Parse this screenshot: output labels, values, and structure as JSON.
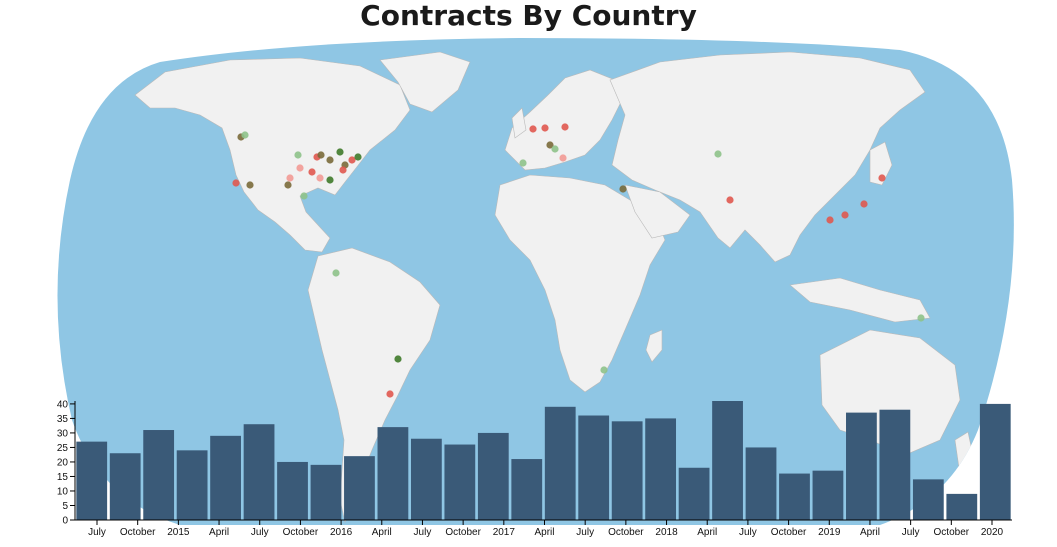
{
  "title": "Contracts By Country",
  "colors": {
    "ocean": "#8fc6e4",
    "land": "#f1f1f1",
    "border": "#b9b9b9",
    "bar": "#3a5a78",
    "dot_red": "#e0584f",
    "dot_pink": "#f29a95",
    "dot_green_dark": "#3f7a2a",
    "dot_green_light": "#8ec28a",
    "dot_olive": "#7a6a3a"
  },
  "chart_data": [
    {
      "type": "map",
      "title": "Contracts By Country",
      "markers": [
        {
          "region": "Seattle",
          "color": "olive"
        },
        {
          "region": "Seattle",
          "color": "green_light"
        },
        {
          "region": "Los Angeles",
          "color": "red"
        },
        {
          "region": "Phoenix",
          "color": "olive"
        },
        {
          "region": "Chicago",
          "color": "red"
        },
        {
          "region": "Chicago",
          "color": "olive"
        },
        {
          "region": "Detroit",
          "color": "olive"
        },
        {
          "region": "New York",
          "color": "red"
        },
        {
          "region": "Boston",
          "color": "green_dark"
        },
        {
          "region": "Philadelphia",
          "color": "olive"
        },
        {
          "region": "Washington",
          "color": "red"
        },
        {
          "region": "Atlanta",
          "color": "green_dark"
        },
        {
          "region": "Dallas",
          "color": "olive"
        },
        {
          "region": "Houston",
          "color": "green_light"
        },
        {
          "region": "Denver",
          "color": "pink"
        },
        {
          "region": "Kansas City",
          "color": "pink"
        },
        {
          "region": "St. Louis",
          "color": "red"
        },
        {
          "region": "Nashville",
          "color": "pink"
        },
        {
          "region": "Charlotte",
          "color": "green_dark"
        },
        {
          "region": "Minneapolis",
          "color": "green_light"
        },
        {
          "region": "Colombia",
          "color": "green_light"
        },
        {
          "region": "Sao Paulo",
          "color": "green_dark"
        },
        {
          "region": "Buenos Aires",
          "color": "red"
        },
        {
          "region": "London",
          "color": "red"
        },
        {
          "region": "Amsterdam",
          "color": "red"
        },
        {
          "region": "Berlin",
          "color": "red"
        },
        {
          "region": "Paris",
          "color": "olive"
        },
        {
          "region": "Madrid",
          "color": "green_light"
        },
        {
          "region": "Rome",
          "color": "pink"
        },
        {
          "region": "Zurich",
          "color": "green_light"
        },
        {
          "region": "Israel",
          "color": "olive"
        },
        {
          "region": "India",
          "color": "red"
        },
        {
          "region": "Kazakhstan",
          "color": "green_light"
        },
        {
          "region": "Shanghai",
          "color": "red"
        },
        {
          "region": "Taiwan",
          "color": "red"
        },
        {
          "region": "Korea",
          "color": "red"
        },
        {
          "region": "Tokyo",
          "color": "red"
        },
        {
          "region": "Papua New Guinea",
          "color": "green_light"
        },
        {
          "region": "South Africa",
          "color": "green_light"
        }
      ]
    },
    {
      "type": "bar",
      "x_tick_labels": [
        "July",
        "October",
        "2015",
        "April",
        "July",
        "October",
        "2016",
        "April",
        "July",
        "October",
        "2017",
        "April",
        "July",
        "October",
        "2018",
        "April",
        "July",
        "October",
        "2019",
        "April",
        "July",
        "October",
        "2020"
      ],
      "periods": [
        "2014 Q3",
        "2014 Q4",
        "2015 Q1",
        "2015 Q2",
        "2015 Q3",
        "2015 Q4",
        "2016 Q1",
        "2016 Q2",
        "2016 Q3",
        "2016 Q4",
        "2017 Q1",
        "2017 Q2",
        "2017 Q3",
        "2017 Q4",
        "2018 Q1",
        "2018 Q2",
        "2018 Q3",
        "2018 Q4",
        "2019 Q1",
        "2019 Q2",
        "2019 Q3",
        "2019 Q4",
        "2020 Q1",
        "2020 Q2",
        "2020 Q3",
        "2020 Q4",
        "2021 Q1",
        "2021 Q2"
      ],
      "values": [
        27,
        23,
        31,
        24,
        29,
        33,
        20,
        19,
        22,
        32,
        28,
        26,
        30,
        21,
        39,
        36,
        34,
        35,
        18,
        41,
        25,
        16,
        17,
        37,
        38,
        14,
        9,
        40
      ],
      "ylim": [
        0,
        41
      ],
      "yticks": [
        0,
        5,
        10,
        15,
        20,
        25,
        30,
        35,
        40
      ],
      "grid": false,
      "xlabel": "",
      "ylabel": ""
    }
  ]
}
